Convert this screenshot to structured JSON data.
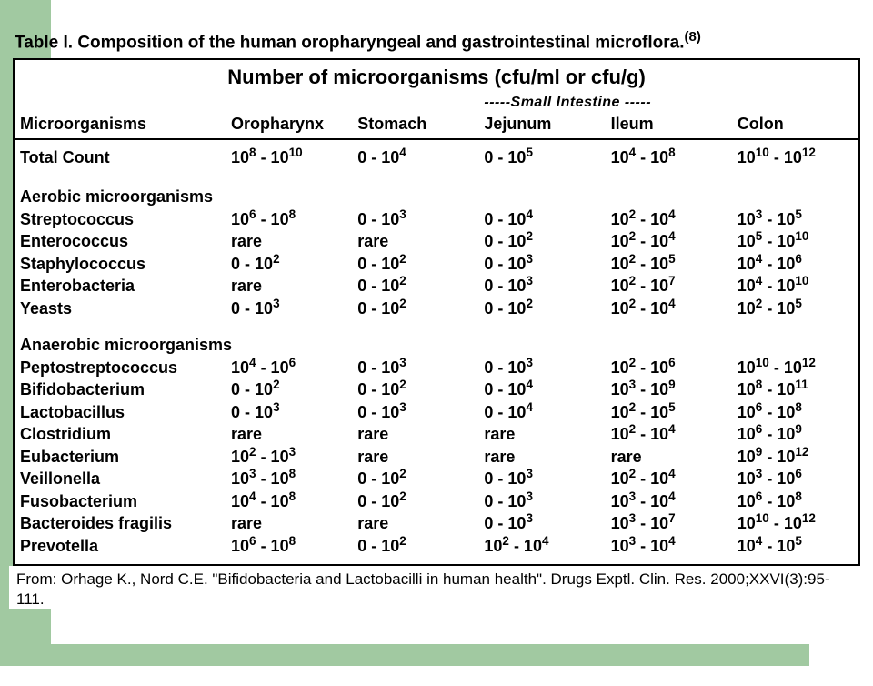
{
  "colors": {
    "green": "#a1c9a1",
    "text": "#000000",
    "border": "#000000",
    "background": "#ffffff"
  },
  "typography": {
    "family": "Arial",
    "title_pt": 19,
    "header_pt": 22,
    "body_pt": 18,
    "footer_pt": 17
  },
  "title": {
    "text": "Table I. Composition of the human oropharyngeal and gastrointestinal microflora.",
    "citation": "(8)"
  },
  "super_header": "Number of microorganisms (cfu/ml or cfu/g)",
  "small_intestine_label": "-----Small Intestine -----",
  "columns": [
    "Microorganisms",
    "Oropharynx",
    "Stomach",
    "Jejunum",
    "Ileum",
    "Colon"
  ],
  "total_row": {
    "label": "Total Count",
    "values": [
      {
        "lo_b": 10,
        "lo_e": 8,
        "hi_b": 10,
        "hi_e": 10
      },
      {
        "lo_b": 0,
        "hi_b": 10,
        "hi_e": 4
      },
      {
        "lo_b": 0,
        "hi_b": 10,
        "hi_e": 5
      },
      {
        "lo_b": 10,
        "lo_e": 4,
        "hi_b": 10,
        "hi_e": 8
      },
      {
        "lo_b": 10,
        "lo_e": 10,
        "hi_b": 10,
        "hi_e": 12
      }
    ]
  },
  "sections": [
    {
      "heading": "Aerobic microorganisms",
      "rows": [
        {
          "name": "Streptococcus",
          "values": [
            {
              "lo_b": 10,
              "lo_e": 6,
              "hi_b": 10,
              "hi_e": 8
            },
            {
              "lo_b": 0,
              "hi_b": 10,
              "hi_e": 3
            },
            {
              "lo_b": 0,
              "hi_b": 10,
              "hi_e": 4
            },
            {
              "lo_b": 10,
              "lo_e": 2,
              "hi_b": 10,
              "hi_e": 4
            },
            {
              "lo_b": 10,
              "lo_e": 3,
              "hi_b": 10,
              "hi_e": 5
            }
          ]
        },
        {
          "name": "Enterococcus",
          "values": [
            {
              "text": "rare"
            },
            {
              "text": "rare"
            },
            {
              "lo_b": 0,
              "hi_b": 10,
              "hi_e": 2
            },
            {
              "lo_b": 10,
              "lo_e": 2,
              "hi_b": 10,
              "hi_e": 4
            },
            {
              "lo_b": 10,
              "lo_e": 5,
              "hi_b": 10,
              "hi_e": 10
            }
          ]
        },
        {
          "name": "Staphylococcus",
          "values": [
            {
              "lo_b": 0,
              "hi_b": 10,
              "hi_e": 2
            },
            {
              "lo_b": 0,
              "hi_b": 10,
              "hi_e": 2
            },
            {
              "lo_b": 0,
              "hi_b": 10,
              "hi_e": 3
            },
            {
              "lo_b": 10,
              "lo_e": 2,
              "hi_b": 10,
              "hi_e": 5
            },
            {
              "lo_b": 10,
              "lo_e": 4,
              "hi_b": 10,
              "hi_e": 6
            }
          ]
        },
        {
          "name": "Enterobacteria",
          "values": [
            {
              "text": "rare"
            },
            {
              "lo_b": 0,
              "hi_b": 10,
              "hi_e": 2
            },
            {
              "lo_b": 0,
              "hi_b": 10,
              "hi_e": 3
            },
            {
              "lo_b": 10,
              "lo_e": 2,
              "hi_b": 10,
              "hi_e": 7
            },
            {
              "lo_b": 10,
              "lo_e": 4,
              "hi_b": 10,
              "hi_e": 10
            }
          ]
        },
        {
          "name": "Yeasts",
          "values": [
            {
              "lo_b": 0,
              "hi_b": 10,
              "hi_e": 3
            },
            {
              "lo_b": 0,
              "hi_b": 10,
              "hi_e": 2
            },
            {
              "lo_b": 0,
              "hi_b": 10,
              "hi_e": 2
            },
            {
              "lo_b": 10,
              "lo_e": 2,
              "hi_b": 10,
              "hi_e": 4
            },
            {
              "lo_b": 10,
              "lo_e": 2,
              "hi_b": 10,
              "hi_e": 5
            }
          ]
        }
      ]
    },
    {
      "heading": "Anaerobic microorganisms",
      "rows": [
        {
          "name": "Peptostreptococcus",
          "values": [
            {
              "lo_b": 10,
              "lo_e": 4,
              "hi_b": 10,
              "hi_e": 6
            },
            {
              "lo_b": 0,
              "hi_b": 10,
              "hi_e": 3
            },
            {
              "lo_b": 0,
              "hi_b": 10,
              "hi_e": 3
            },
            {
              "lo_b": 10,
              "lo_e": 2,
              "hi_b": 10,
              "hi_e": 6
            },
            {
              "lo_b": 10,
              "lo_e": 10,
              "hi_b": 10,
              "hi_e": 12
            }
          ]
        },
        {
          "name": "Bifidobacterium",
          "values": [
            {
              "lo_b": 0,
              "hi_b": 10,
              "hi_e": 2
            },
            {
              "lo_b": 0,
              "hi_b": 10,
              "hi_e": 2
            },
            {
              "lo_b": 0,
              "hi_b": 10,
              "hi_e": 4
            },
            {
              "lo_b": 10,
              "lo_e": 3,
              "hi_b": 10,
              "hi_e": 9
            },
            {
              "lo_b": 10,
              "lo_e": 8,
              "hi_b": 10,
              "hi_e": 11
            }
          ]
        },
        {
          "name": "Lactobacillus",
          "values": [
            {
              "lo_b": 0,
              "hi_b": 10,
              "hi_e": 3
            },
            {
              "lo_b": 0,
              "hi_b": 10,
              "hi_e": 3
            },
            {
              "lo_b": 0,
              "hi_b": 10,
              "hi_e": 4
            },
            {
              "lo_b": 10,
              "lo_e": 2,
              "hi_b": 10,
              "hi_e": 5
            },
            {
              "lo_b": 10,
              "lo_e": 6,
              "hi_b": 10,
              "hi_e": 8
            }
          ]
        },
        {
          "name": "Clostridium",
          "values": [
            {
              "text": "rare"
            },
            {
              "text": "rare"
            },
            {
              "text": "rare"
            },
            {
              "lo_b": 10,
              "lo_e": 2,
              "hi_b": 10,
              "hi_e": 4
            },
            {
              "lo_b": 10,
              "lo_e": 6,
              "hi_b": 10,
              "hi_e": 9
            }
          ]
        },
        {
          "name": "Eubacterium",
          "values": [
            {
              "lo_b": 10,
              "lo_e": 2,
              "hi_b": 10,
              "hi_e": 3
            },
            {
              "text": "rare"
            },
            {
              "text": "rare"
            },
            {
              "text": "rare"
            },
            {
              "lo_b": 10,
              "lo_e": 9,
              "hi_b": 10,
              "hi_e": 12
            }
          ]
        },
        {
          "name": "Veillonella",
          "values": [
            {
              "lo_b": 10,
              "lo_e": 3,
              "hi_b": 10,
              "hi_e": 8
            },
            {
              "lo_b": 0,
              "hi_b": 10,
              "hi_e": 2
            },
            {
              "lo_b": 0,
              "hi_b": 10,
              "hi_e": 3
            },
            {
              "lo_b": 10,
              "lo_e": 2,
              "hi_b": 10,
              "hi_e": 4
            },
            {
              "lo_b": 10,
              "lo_e": 3,
              "hi_b": 10,
              "hi_e": 6
            }
          ]
        },
        {
          "name": "Fusobacterium",
          "values": [
            {
              "lo_b": 10,
              "lo_e": 4,
              "hi_b": 10,
              "hi_e": 8
            },
            {
              "lo_b": 0,
              "hi_b": 10,
              "hi_e": 2
            },
            {
              "lo_b": 0,
              "hi_b": 10,
              "hi_e": 3
            },
            {
              "lo_b": 10,
              "lo_e": 3,
              "hi_b": 10,
              "hi_e": 4
            },
            {
              "lo_b": 10,
              "lo_e": 6,
              "hi_b": 10,
              "hi_e": 8
            }
          ]
        },
        {
          "name": "Bacteroides fragilis",
          "values": [
            {
              "text": "rare"
            },
            {
              "text": "rare"
            },
            {
              "lo_b": 0,
              "hi_b": 10,
              "hi_e": 3
            },
            {
              "lo_b": 10,
              "lo_e": 3,
              "hi_b": 10,
              "hi_e": 7
            },
            {
              "lo_b": 10,
              "lo_e": 10,
              "hi_b": 10,
              "hi_e": 12
            }
          ]
        },
        {
          "name": "Prevotella",
          "values": [
            {
              "lo_b": 10,
              "lo_e": 6,
              "hi_b": 10,
              "hi_e": 8
            },
            {
              "lo_b": 0,
              "hi_b": 10,
              "hi_e": 2
            },
            {
              "lo_b": 10,
              "lo_e": 2,
              "hi_b": 10,
              "hi_e": 4
            },
            {
              "lo_b": 10,
              "lo_e": 3,
              "hi_b": 10,
              "hi_e": 4
            },
            {
              "lo_b": 10,
              "lo_e": 4,
              "hi_b": 10,
              "hi_e": 5
            }
          ]
        }
      ]
    }
  ],
  "footer": "From: Orhage K., Nord C.E. \"Bifidobacteria and Lactobacilli in human health\". Drugs Exptl. Clin. Res. 2000;XXVI(3):95-111."
}
